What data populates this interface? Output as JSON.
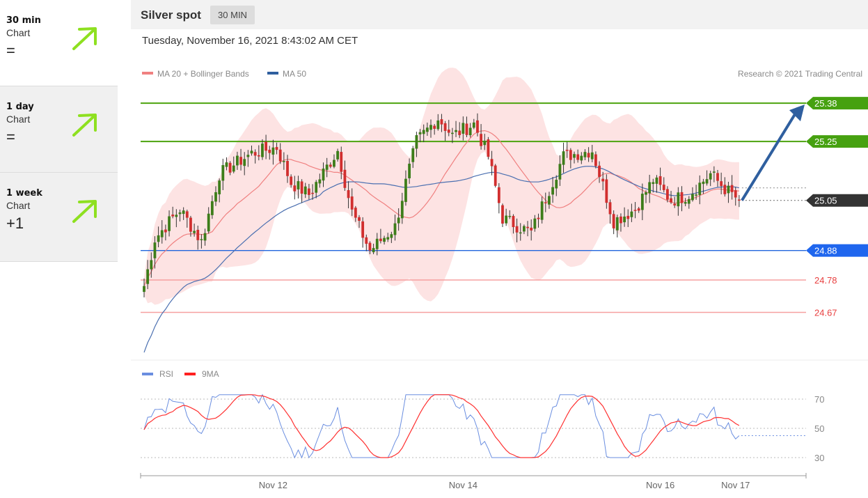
{
  "sidebar": {
    "items": [
      {
        "period": "30 min",
        "sub": "Chart",
        "value": "=",
        "arrow_color": "#8ee020"
      },
      {
        "period": "1 day",
        "sub": "Chart",
        "value": "=",
        "arrow_color": "#8ee020"
      },
      {
        "period": "1 week",
        "sub": "Chart",
        "value": "+1",
        "arrow_color": "#8ee020"
      }
    ]
  },
  "header": {
    "title": "Silver spot",
    "timeframe": "30 MIN",
    "datetime": "Tuesday, November 16, 2021 8:43:02 AM CET",
    "credit": "Research © 2021 Trading Central"
  },
  "chart_data": {
    "type": "candlestick",
    "legend": [
      {
        "name": "MA 20 + Bollinger Bands",
        "color": "#f08080"
      },
      {
        "name": "MA 50",
        "color": "#2f5f9f"
      }
    ],
    "ylim": [
      24.52,
      25.47
    ],
    "levels": [
      {
        "value": 25.38,
        "label": "25.38",
        "color": "#4ca30d",
        "kind": "target"
      },
      {
        "value": 25.25,
        "label": "25.25",
        "color": "#4ca30d",
        "kind": "target"
      },
      {
        "value": 25.05,
        "label": "25.05",
        "color": "#333333",
        "kind": "last"
      },
      {
        "value": 24.88,
        "label": "24.88",
        "color": "#2266dd",
        "kind": "pivot"
      },
      {
        "value": 24.78,
        "label": "24.78",
        "color": "#e84040",
        "kind": "support"
      },
      {
        "value": 24.67,
        "label": "24.67",
        "color": "#e84040",
        "kind": "support"
      }
    ],
    "x_ticks": [
      "Nov 12",
      "Nov 14",
      "Nov 16",
      "Nov 17"
    ],
    "x_tick_index": [
      36,
      89,
      144,
      165
    ],
    "anchors": [
      {
        "i": 0,
        "v": 24.76
      },
      {
        "i": 3,
        "v": 24.92
      },
      {
        "i": 10,
        "v": 25.02
      },
      {
        "i": 16,
        "v": 24.91
      },
      {
        "i": 21,
        "v": 25.14
      },
      {
        "i": 30,
        "v": 25.21
      },
      {
        "i": 37,
        "v": 25.23
      },
      {
        "i": 41,
        "v": 25.11
      },
      {
        "i": 46,
        "v": 25.07
      },
      {
        "i": 54,
        "v": 25.22
      },
      {
        "i": 58,
        "v": 25.01
      },
      {
        "i": 63,
        "v": 24.88
      },
      {
        "i": 70,
        "v": 24.96
      },
      {
        "i": 73,
        "v": 25.11
      },
      {
        "i": 76,
        "v": 25.25
      },
      {
        "i": 82,
        "v": 25.33
      },
      {
        "i": 86,
        "v": 25.27
      },
      {
        "i": 92,
        "v": 25.31
      },
      {
        "i": 96,
        "v": 25.2
      },
      {
        "i": 100,
        "v": 24.99
      },
      {
        "i": 108,
        "v": 24.94
      },
      {
        "i": 112,
        "v": 25.06
      },
      {
        "i": 117,
        "v": 25.2
      },
      {
        "i": 125,
        "v": 25.22
      },
      {
        "i": 131,
        "v": 24.98
      },
      {
        "i": 137,
        "v": 25.02
      },
      {
        "i": 142,
        "v": 25.12
      },
      {
        "i": 147,
        "v": 25.05
      },
      {
        "i": 152,
        "v": 25.07
      },
      {
        "i": 158,
        "v": 25.14
      },
      {
        "i": 162,
        "v": 25.09
      },
      {
        "i": 166,
        "v": 25.05
      }
    ],
    "forecast": {
      "from_value": 25.05,
      "to_value": 25.38
    },
    "rsi": {
      "legend": [
        {
          "name": "RSI",
          "color": "#6a8ee0"
        },
        {
          "name": "9MA",
          "color": "#ff2020"
        }
      ],
      "levels": [
        70,
        50,
        30
      ],
      "last": 45
    }
  }
}
